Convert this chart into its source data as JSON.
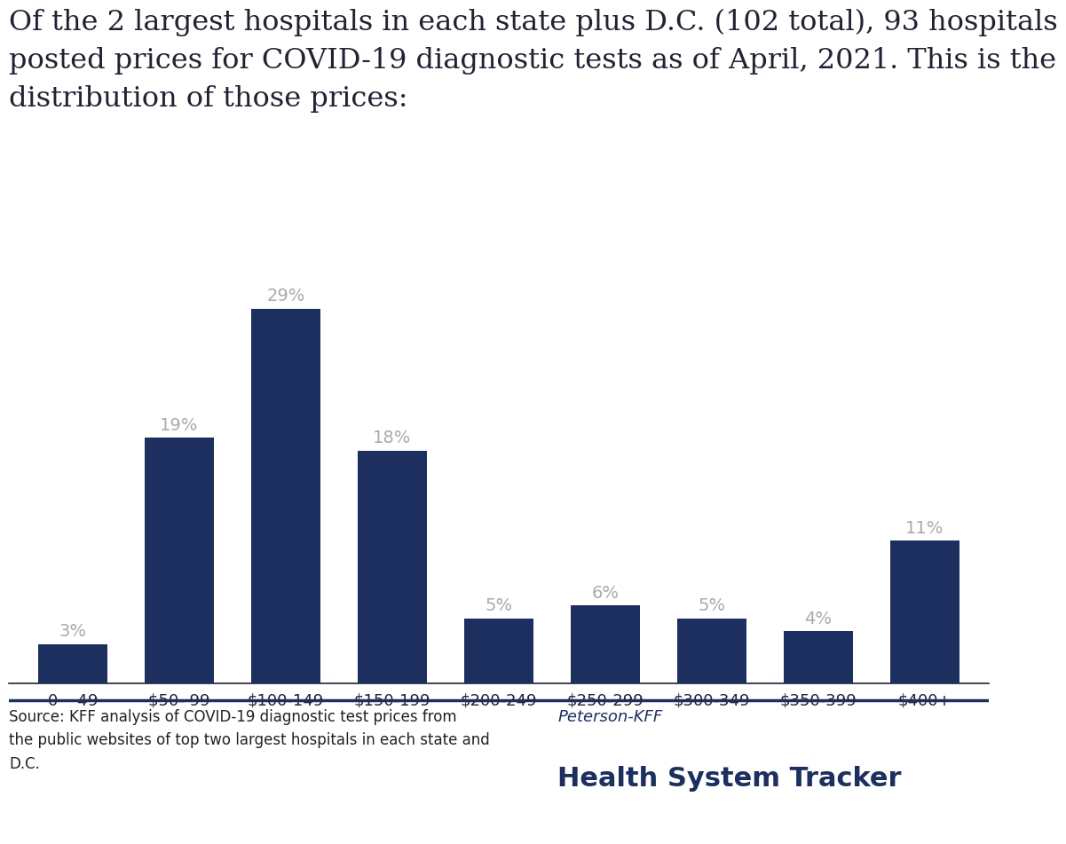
{
  "categories": [
    "$0 - $49",
    "$50- 99",
    "$100-149",
    "$150-199",
    "$200-249",
    "$250-299",
    "$300-349",
    "$350-399",
    "$400+"
  ],
  "values": [
    3,
    19,
    29,
    18,
    5,
    6,
    5,
    4,
    11
  ],
  "bar_color": "#1c2f5e",
  "label_color": "#aaaaaa",
  "background_color": "#ffffff",
  "title_text": "Of the 2 largest hospitals in each state plus D.C. (102 total), 93 hospitals\nposted prices for COVID-19 diagnostic tests as of April, 2021. This is the\ndistribution of those prices:",
  "title_color": "#222233",
  "title_fontsize": 23,
  "label_fontsize": 14,
  "xtick_fontsize": 13,
  "ylim": [
    0,
    32
  ],
  "grid_color": "#d8d8d8",
  "source_text": "Source: KFF analysis of COVID-19 diagnostic test prices from\nthe public websites of top two largest hospitals in each state and\nD.C.",
  "source_fontsize": 12,
  "source_color": "#222222",
  "brand_line1": "Peterson-KFF",
  "brand_line2": "Health System Tracker",
  "brand_color1": "#1c2f5e",
  "brand_color2": "#1c2f5e",
  "brand_fontsize1": 13,
  "brand_fontsize2": 22,
  "divider_color": "#1c2f5e",
  "bar_width": 0.65
}
